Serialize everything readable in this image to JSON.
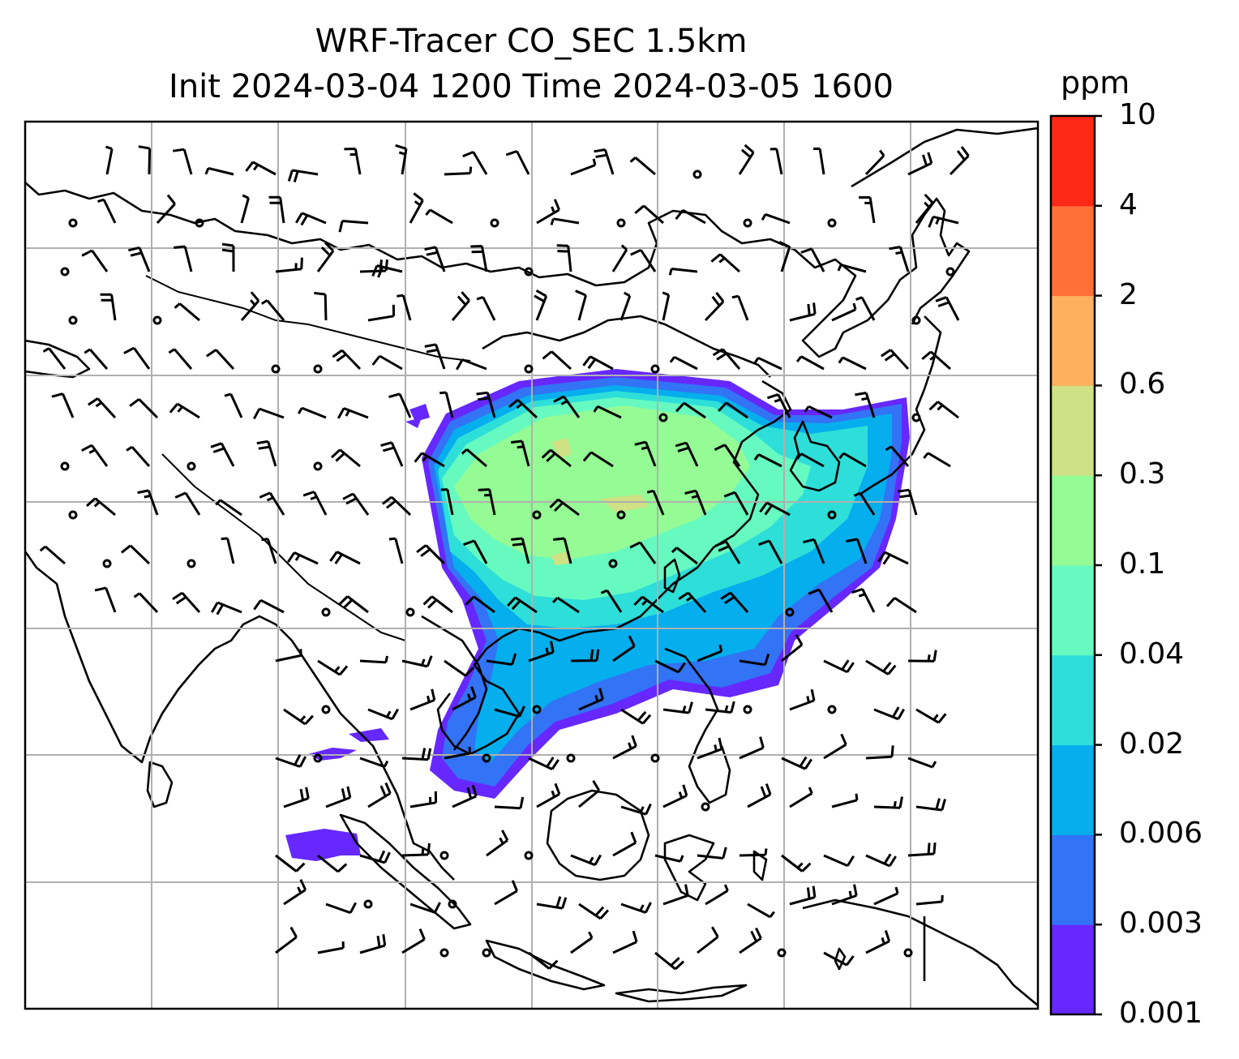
{
  "title_line1": "WRF-Tracer CO_SEC 1.5km",
  "title_line2": "Init 2024-03-04 1200 Time 2024-03-05 1600",
  "colorbar": {
    "unit": "ppm",
    "levels": [
      "0.001",
      "0.003",
      "0.006",
      "0.02",
      "0.04",
      "0.1",
      "0.3",
      "0.6",
      "2",
      "4",
      "10"
    ],
    "colors": [
      "#6628ff",
      "#3373f5",
      "#05aeec",
      "#2ddfd8",
      "#66fac0",
      "#95fb95",
      "#cfe085",
      "#fdb060",
      "#ff7038",
      "#ff2817"
    ]
  },
  "map": {
    "background": "#ffffff",
    "gridline_color": "#b0b0b0",
    "coastline_color": "#000000"
  }
}
